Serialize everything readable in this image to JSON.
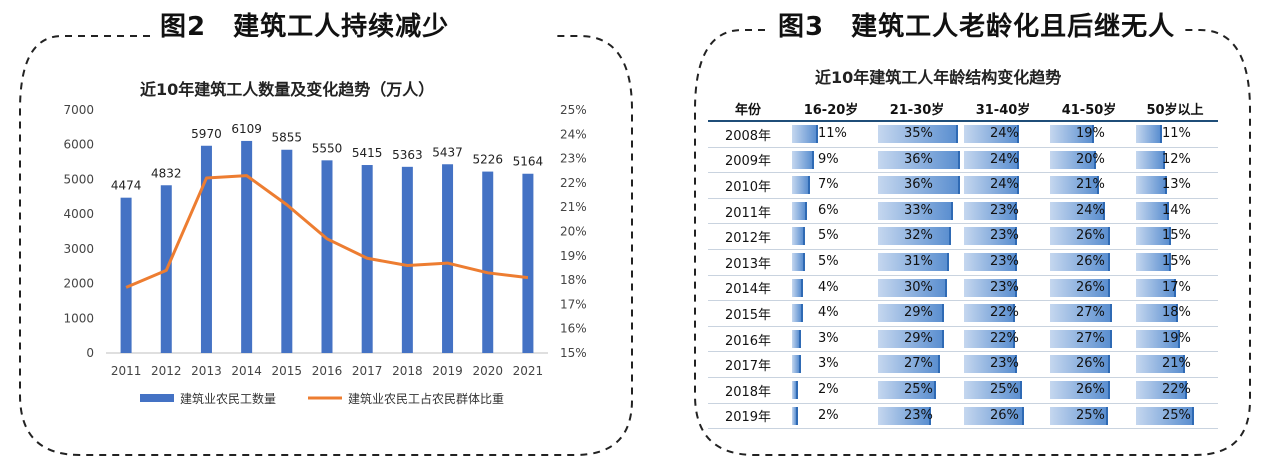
{
  "figures": {
    "left_title": "图2　建筑工人持续减少",
    "right_title": "图3　建筑工人老龄化且后继无人"
  },
  "colors": {
    "bar": "#4472c4",
    "line": "#ed7d31",
    "table_bar": "#5b8fd0"
  },
  "chart_data": [
    {
      "type": "bar",
      "title": "近10年建筑工人数量及变化趋势（万人）",
      "categories": [
        "2011",
        "2012",
        "2013",
        "2014",
        "2015",
        "2016",
        "2017",
        "2018",
        "2019",
        "2020",
        "2021"
      ],
      "ylim": [
        0,
        7000
      ],
      "yticks": [
        0,
        1000,
        2000,
        3000,
        4000,
        5000,
        6000,
        7000
      ],
      "y2lim": [
        15,
        25
      ],
      "y2ticks": [
        "15%",
        "16%",
        "17%",
        "18%",
        "19%",
        "20%",
        "21%",
        "22%",
        "23%",
        "24%",
        "25%"
      ],
      "series": [
        {
          "name": "建筑业农民工数量",
          "type": "bar",
          "values": [
            4474,
            4832,
            5970,
            6109,
            5855,
            5550,
            5415,
            5363,
            5437,
            5226,
            5164
          ],
          "labels": [
            "4474",
            "4832",
            "5970",
            "6109",
            "5855",
            "5550",
            "5415",
            "5363",
            "5437",
            "5226",
            "5164"
          ]
        },
        {
          "name": "建筑业农民工占农民群体比重",
          "type": "line",
          "values": [
            17.7,
            18.4,
            22.2,
            22.3,
            21.1,
            19.7,
            18.9,
            18.6,
            18.7,
            18.3,
            18.1
          ]
        }
      ],
      "legend": "bottom"
    },
    {
      "type": "table",
      "title": "近10年建筑工人年龄结构变化趋势",
      "columns": [
        "年份",
        "16-20岁",
        "21-30岁",
        "31-40岁",
        "41-50岁",
        "50岁以上"
      ],
      "rows": [
        {
          "year": "2008年",
          "values": [
            11,
            35,
            24,
            19,
            11
          ],
          "labels": [
            "11%",
            "35%",
            "24%",
            "19%",
            "11%"
          ]
        },
        {
          "year": "2009年",
          "values": [
            9,
            36,
            24,
            20,
            12
          ],
          "labels": [
            "9%",
            "36%",
            "24%",
            "20%",
            "12%"
          ]
        },
        {
          "year": "2010年",
          "values": [
            7,
            36,
            24,
            21,
            13
          ],
          "labels": [
            "7%",
            "36%",
            "24%",
            "21%",
            "13%"
          ]
        },
        {
          "year": "2011年",
          "values": [
            6,
            33,
            23,
            24,
            14
          ],
          "labels": [
            "6%",
            "33%",
            "23%",
            "24%",
            "14%"
          ]
        },
        {
          "year": "2012年",
          "values": [
            5,
            32,
            23,
            26,
            15
          ],
          "labels": [
            "5%",
            "32%",
            "23%",
            "26%",
            "15%"
          ]
        },
        {
          "year": "2013年",
          "values": [
            5,
            31,
            23,
            26,
            15
          ],
          "labels": [
            "5%",
            "31%",
            "23%",
            "26%",
            "15%"
          ]
        },
        {
          "year": "2014年",
          "values": [
            4,
            30,
            23,
            26,
            17
          ],
          "labels": [
            "4%",
            "30%",
            "23%",
            "26%",
            "17%"
          ]
        },
        {
          "year": "2015年",
          "values": [
            4,
            29,
            22,
            27,
            18
          ],
          "labels": [
            "4%",
            "29%",
            "22%",
            "27%",
            "18%"
          ]
        },
        {
          "year": "2016年",
          "values": [
            3,
            29,
            22,
            27,
            19
          ],
          "labels": [
            "3%",
            "29%",
            "22%",
            "27%",
            "19%"
          ]
        },
        {
          "year": "2017年",
          "values": [
            3,
            27,
            23,
            26,
            21
          ],
          "labels": [
            "3%",
            "27%",
            "23%",
            "26%",
            "21%"
          ]
        },
        {
          "year": "2018年",
          "values": [
            2,
            25,
            25,
            26,
            22
          ],
          "labels": [
            "2%",
            "25%",
            "25%",
            "26%",
            "22%"
          ]
        },
        {
          "year": "2019年",
          "values": [
            2,
            23,
            26,
            25,
            25
          ],
          "labels": [
            "2%",
            "23%",
            "26%",
            "25%",
            "25%"
          ]
        }
      ]
    }
  ]
}
